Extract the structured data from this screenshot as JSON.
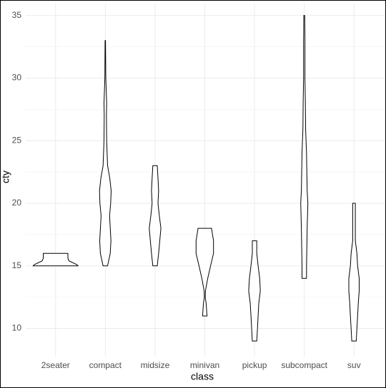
{
  "chart_data": {
    "type": "violin",
    "x_label": "class",
    "y_label": "cty",
    "categories": [
      "2seater",
      "compact",
      "midsize",
      "minivan",
      "pickup",
      "subcompact",
      "suv"
    ],
    "ylim": [
      7.75,
      35.95
    ],
    "yticks": [
      10,
      15,
      20,
      25,
      30,
      35
    ],
    "yminor": [
      12.5,
      17.5,
      22.5,
      27.5,
      32.5
    ],
    "grid": true,
    "color": "#000000",
    "violins": [
      {
        "profile": [
          [
            15,
            1
          ],
          [
            15.1,
            0.95
          ],
          [
            15.4,
            0.6
          ],
          [
            15.6,
            0.55
          ],
          [
            16,
            0.55
          ]
        ]
      },
      {
        "profile": [
          [
            15,
            0.1
          ],
          [
            16,
            0.22
          ],
          [
            17,
            0.25
          ],
          [
            19,
            0.19
          ],
          [
            20,
            0.24
          ],
          [
            21,
            0.26
          ],
          [
            22,
            0.2
          ],
          [
            23,
            0.1
          ],
          [
            25,
            0.06
          ],
          [
            27,
            0.05
          ],
          [
            28,
            0.06
          ],
          [
            30,
            0.02
          ],
          [
            33,
            0.01
          ]
        ]
      },
      {
        "profile": [
          [
            15,
            0.1
          ],
          [
            16,
            0.16
          ],
          [
            18,
            0.26
          ],
          [
            19,
            0.19
          ],
          [
            20,
            0.13
          ],
          [
            21,
            0.16
          ],
          [
            22,
            0.13
          ],
          [
            23,
            0.1
          ]
        ]
      },
      {
        "profile": [
          [
            11,
            0.1
          ],
          [
            12,
            0.06
          ],
          [
            12.5,
            0.02
          ],
          [
            13,
            0.03
          ],
          [
            14,
            0.13
          ],
          [
            15,
            0.26
          ],
          [
            16,
            0.39
          ],
          [
            17,
            0.39
          ],
          [
            18,
            0.3
          ]
        ]
      },
      {
        "profile": [
          [
            9,
            0.1
          ],
          [
            10,
            0.13
          ],
          [
            11,
            0.16
          ],
          [
            12,
            0.19
          ],
          [
            13,
            0.26
          ],
          [
            14,
            0.23
          ],
          [
            15,
            0.16
          ],
          [
            16,
            0.1
          ],
          [
            17,
            0.1
          ]
        ]
      },
      {
        "profile": [
          [
            14,
            0.1
          ],
          [
            15,
            0.1
          ],
          [
            18,
            0.13
          ],
          [
            20,
            0.16
          ],
          [
            21,
            0.13
          ],
          [
            24,
            0.1
          ],
          [
            26,
            0.06
          ],
          [
            28,
            0.05
          ],
          [
            30,
            0.03
          ],
          [
            33,
            0.03
          ],
          [
            35,
            0.02
          ]
        ]
      },
      {
        "profile": [
          [
            9,
            0.1
          ],
          [
            10,
            0.13
          ],
          [
            11,
            0.16
          ],
          [
            12,
            0.19
          ],
          [
            13,
            0.23
          ],
          [
            14,
            0.23
          ],
          [
            15,
            0.16
          ],
          [
            16,
            0.13
          ],
          [
            17,
            0.06
          ],
          [
            18,
            0.06
          ],
          [
            19,
            0.06
          ],
          [
            20,
            0.06
          ]
        ]
      }
    ]
  }
}
